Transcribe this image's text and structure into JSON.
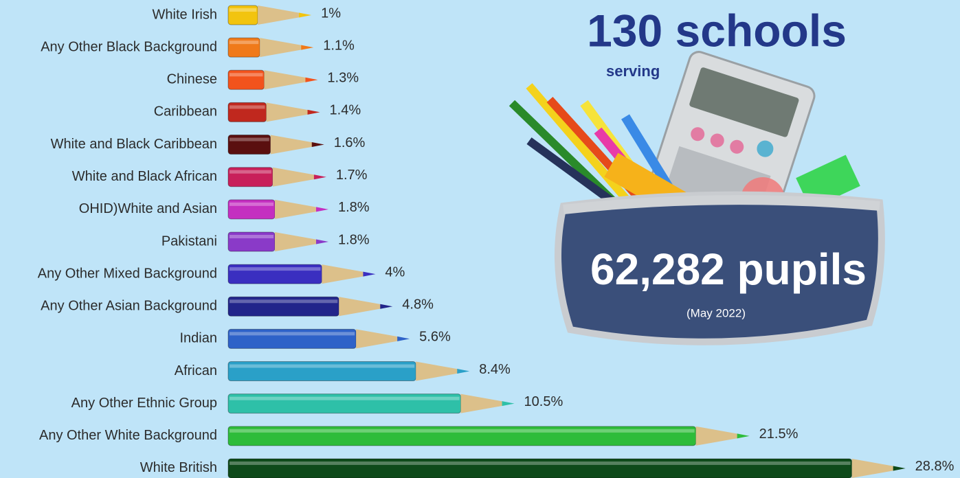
{
  "chart_data": {
    "type": "pencil-bar",
    "categories": [
      "White Irish",
      "Any Other Black Background",
      "Chinese",
      "Caribbean",
      "White and Black Caribbean",
      "White and Black African",
      "OHID)White and Asian",
      "Pakistani",
      "Any Other Mixed Background",
      "Any Other Asian Background",
      "Indian",
      "African",
      "Any Other Ethnic Group",
      "Any Other White Background",
      "White British"
    ],
    "values": [
      1,
      1.1,
      1.3,
      1.4,
      1.6,
      1.7,
      1.8,
      1.8,
      4,
      4.8,
      5.6,
      8.4,
      10.5,
      21.5,
      28.8
    ],
    "value_labels": [
      "1%",
      "1.1%",
      "1.3%",
      "1.4%",
      "1.6%",
      "1.7%",
      "1.8%",
      "1.8%",
      "4%",
      "4.8%",
      "5.6%",
      "8.4%",
      "10.5%",
      "21.5%",
      "28.8%"
    ],
    "colors": [
      "#f2c40f",
      "#f07a1a",
      "#f2531c",
      "#c0281e",
      "#5a0f0f",
      "#c8205a",
      "#c42fc0",
      "#8a3ac8",
      "#3a2fc0",
      "#22258a",
      "#2e62c8",
      "#2aa0c8",
      "#2ec0a8",
      "#2ebc3a",
      "#0e4a1a"
    ]
  },
  "annotations": {
    "schools": "130 schools",
    "serving": "serving",
    "pupils": "62,282 pupils",
    "date": "(May 2022)"
  }
}
